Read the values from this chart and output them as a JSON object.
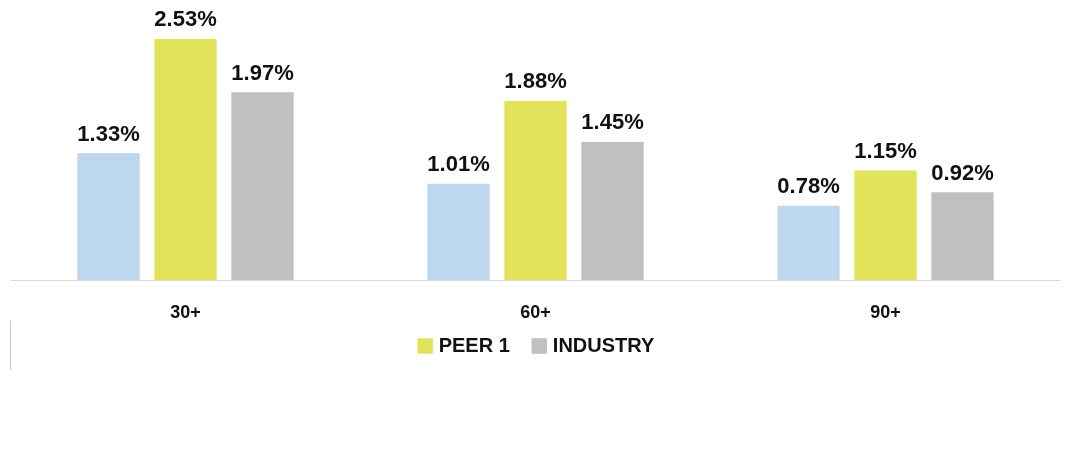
{
  "chart_data": {
    "type": "bar",
    "categories": [
      "30+",
      "60+",
      "90+"
    ],
    "series": [
      {
        "color": "#bdd7ee",
        "values": [
          1.33,
          1.01,
          0.78
        ],
        "value_labels": [
          "1.33%",
          "1.01%",
          "0.78%"
        ]
      },
      {
        "name": "PEER 1",
        "color": "#e1e35a",
        "values": [
          2.53,
          1.88,
          1.15
        ],
        "value_labels": [
          "2.53%",
          "1.88%",
          "1.15%"
        ]
      },
      {
        "name": "INDUSTRY",
        "color": "#c0c0c0",
        "values": [
          1.97,
          1.45,
          0.92
        ],
        "value_labels": [
          "1.97%",
          "1.45%",
          "0.92%"
        ]
      }
    ],
    "legend": "bottom"
  }
}
